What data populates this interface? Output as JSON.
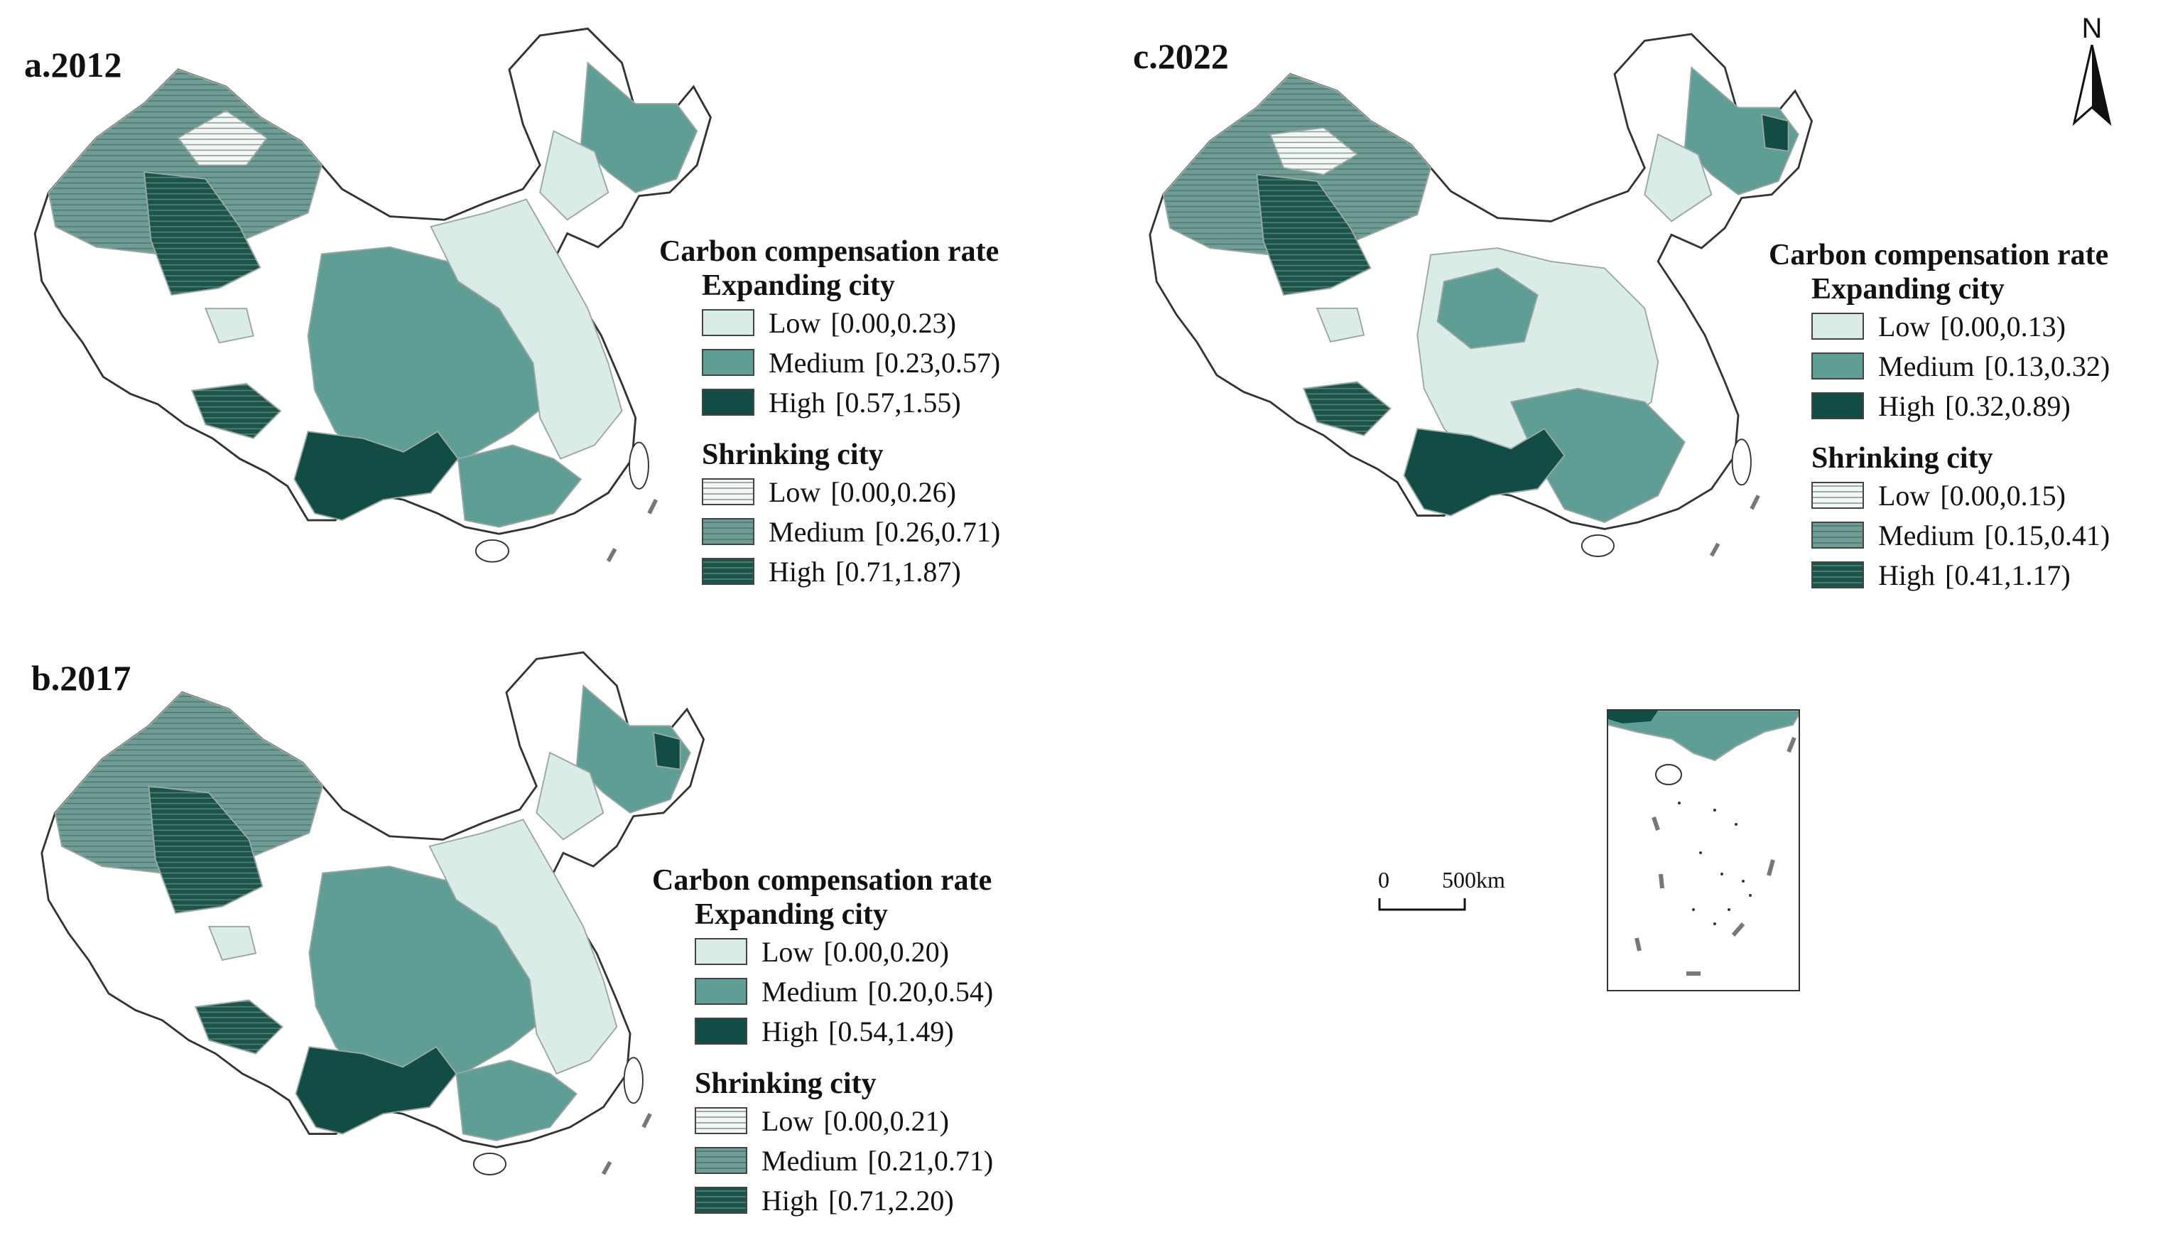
{
  "colors": {
    "expanding_low": "#d9ece8",
    "expanding_medium": "#5f9e95",
    "expanding_high": "#114d44",
    "shrinking_low_bg": "#f2f7f5",
    "shrinking_medium_bg": "#6f9c94",
    "shrinking_high_bg": "#1d5449",
    "boundary": "#9aa7a4",
    "outline": "#333333"
  },
  "panels": [
    {
      "title": "a.2012",
      "legend": {
        "heading": "Carbon compensation rate",
        "expanding": {
          "title": "Expanding city",
          "items": [
            {
              "label": "Low",
              "range": "[0.00,0.23)"
            },
            {
              "label": "Medium",
              "range": "[0.23,0.57)"
            },
            {
              "label": "High",
              "range": "[0.57,1.55)"
            }
          ]
        },
        "shrinking": {
          "title": "Shrinking city",
          "items": [
            {
              "label": "Low",
              "range": "[0.00,0.26)"
            },
            {
              "label": "Medium",
              "range": "[0.26,0.71)"
            },
            {
              "label": "High",
              "range": "[0.71,1.87)"
            }
          ]
        }
      }
    },
    {
      "title": "b.2017",
      "legend": {
        "heading": "Carbon compensation rate",
        "expanding": {
          "title": "Expanding city",
          "items": [
            {
              "label": "Low",
              "range": "[0.00,0.20)"
            },
            {
              "label": "Medium",
              "range": "[0.20,0.54)"
            },
            {
              "label": "High",
              "range": "[0.54,1.49)"
            }
          ]
        },
        "shrinking": {
          "title": "Shrinking city",
          "items": [
            {
              "label": "Low",
              "range": "[0.00,0.21)"
            },
            {
              "label": "Medium",
              "range": "[0.21,0.71)"
            },
            {
              "label": "High",
              "range": "[0.71,2.20)"
            }
          ]
        }
      }
    },
    {
      "title": "c.2022",
      "legend": {
        "heading": "Carbon compensation rate",
        "expanding": {
          "title": "Expanding city",
          "items": [
            {
              "label": "Low",
              "range": "[0.00,0.13)"
            },
            {
              "label": "Medium",
              "range": "[0.13,0.32)"
            },
            {
              "label": "High",
              "range": "[0.32,0.89)"
            }
          ]
        },
        "shrinking": {
          "title": "Shrinking city",
          "items": [
            {
              "label": "Low",
              "range": "[0.00,0.15)"
            },
            {
              "label": "Medium",
              "range": "[0.15,0.41)"
            },
            {
              "label": "High",
              "range": "[0.41,1.17)"
            }
          ]
        }
      }
    }
  ],
  "north_arrow": {
    "label": "N",
    "icon": "north-arrow-icon"
  },
  "scale_bar": {
    "start": "0",
    "end": "500km"
  }
}
